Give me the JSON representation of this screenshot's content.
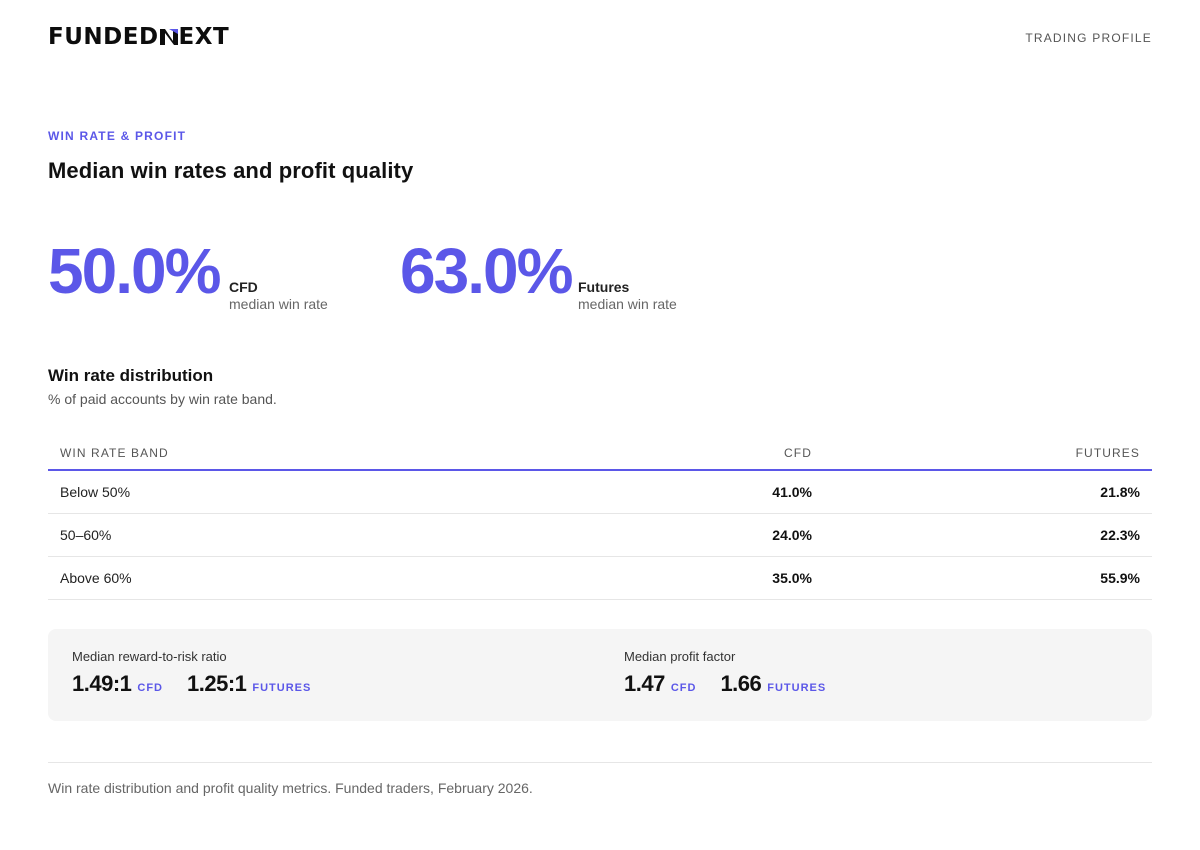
{
  "header": {
    "logo_part1": "FUNDED",
    "logo_part2": "EXT",
    "logo_icon": "n-slash-logo-icon",
    "right_label": "TRADING PROFILE"
  },
  "section": {
    "eyebrow": "WIN RATE & PROFIT",
    "title": "Median win rates and profit quality"
  },
  "stats": [
    {
      "value": "50.0%",
      "label": "CFD",
      "sublabel": "median win rate"
    },
    {
      "value": "63.0%",
      "label": "Futures",
      "sublabel": "median win rate"
    }
  ],
  "distribution": {
    "title": "Win rate distribution",
    "subtitle": "% of paid accounts by win rate band.",
    "columns": [
      "WIN RATE BAND",
      "CFD",
      "FUTURES"
    ],
    "rows": [
      {
        "band": "Below 50%",
        "cfd": "41.0%",
        "futures": "21.8%"
      },
      {
        "band": "50–60%",
        "cfd": "24.0%",
        "futures": "22.3%"
      },
      {
        "band": "Above 60%",
        "cfd": "35.0%",
        "futures": "55.9%"
      }
    ]
  },
  "metrics": [
    {
      "label": "Median reward-to-risk ratio",
      "values": [
        {
          "value": "1.49:1",
          "tag": "CFD"
        },
        {
          "value": "1.25:1",
          "tag": "FUTURES"
        }
      ]
    },
    {
      "label": "Median profit factor",
      "values": [
        {
          "value": "1.47",
          "tag": "CFD"
        },
        {
          "value": "1.66",
          "tag": "FUTURES"
        }
      ]
    }
  ],
  "footer": {
    "text": "Win rate distribution and profit quality metrics. Funded traders, February 2026."
  },
  "colors": {
    "accent": "#5b57e8",
    "text": "#111111",
    "muted": "#666666",
    "panel": "#f5f5f5",
    "divider": "#e6e6e6"
  }
}
